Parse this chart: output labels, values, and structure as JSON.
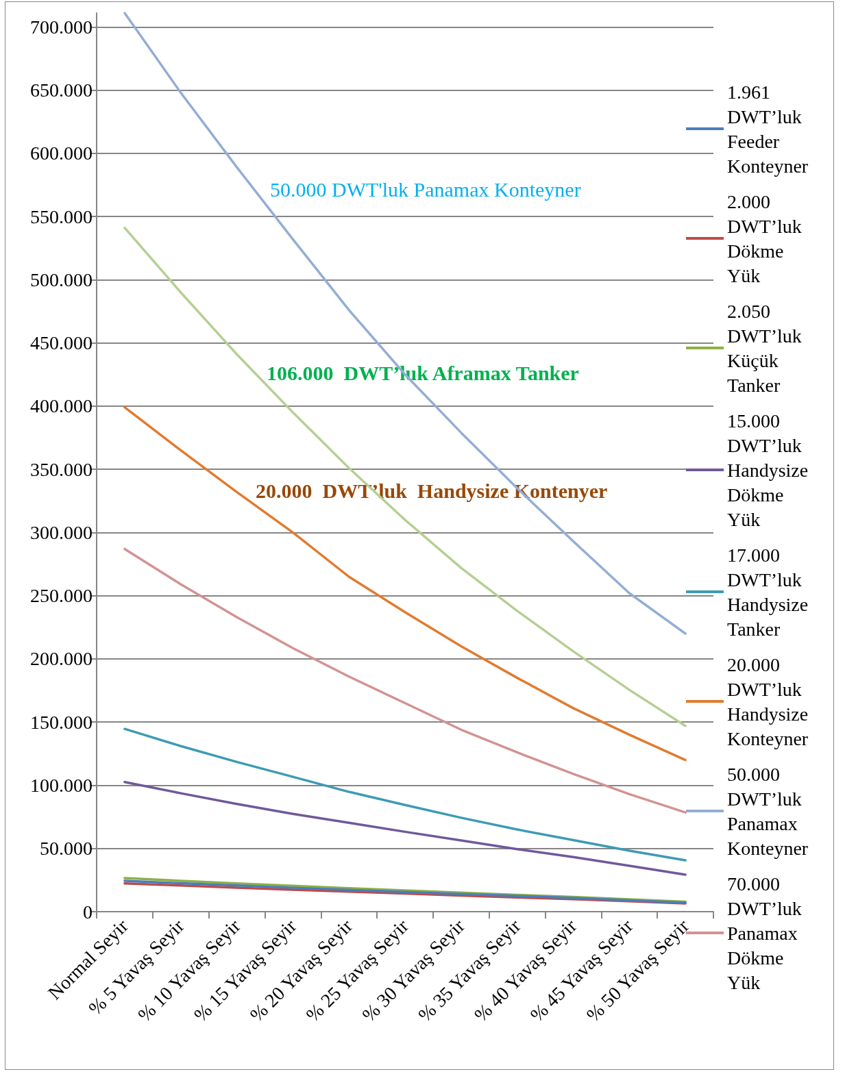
{
  "chart_data": {
    "type": "line",
    "categories": [
      "Normal Seyir",
      "% 5 Yavaş Seyir",
      "% 10 Yavaş Seyir",
      "% 15 Yavaş Seyir",
      "% 20 Yavaş Seyir",
      "% 25 Yavaş Seyir",
      "% 30 Yavaş Seyir",
      "% 35 Yavaş Seyir",
      "% 40 Yavaş Seyir",
      "% 45 Yavaş Seyir",
      "% 50 Yavaş Seyir"
    ],
    "series": [
      {
        "name": "1.961 DWT’luk Feeder Konteyner",
        "color": "#4a7ebb",
        "values": [
          24400,
          22500,
          20700,
          18900,
          17200,
          15600,
          14000,
          12400,
          10900,
          9000,
          7000
        ]
      },
      {
        "name": "2.000 DWT’luk Dökme Yük",
        "color": "#be4b48",
        "values": [
          22400,
          20700,
          19000,
          17400,
          15800,
          14300,
          12800,
          11300,
          9900,
          8200,
          6500
        ]
      },
      {
        "name": "2.050 DWT’luk Küçük Tanker",
        "color": "#8cb045",
        "values": [
          26500,
          24400,
          22400,
          20400,
          18600,
          16800,
          15000,
          13300,
          11700,
          9700,
          7800
        ]
      },
      {
        "name": "15.000 DWT’luk Handysize Dökme Yük",
        "color": "#71589a",
        "values": [
          102600,
          93700,
          85200,
          77400,
          70300,
          63200,
          56400,
          49500,
          43200,
          36300,
          29300
        ]
      },
      {
        "name": "17.000 DWT’luk Handysize Tanker",
        "color": "#3d9bb3",
        "values": [
          144600,
          131000,
          118500,
          106700,
          94800,
          84400,
          74300,
          65000,
          56600,
          48200,
          40600
        ]
      },
      {
        "name": "20.000 DWT’luk Handysize Konteyner",
        "color": "#e07b30",
        "values": [
          399000,
          365000,
          332000,
          300000,
          265000,
          237000,
          210000,
          185000,
          161000,
          140000,
          120000
        ]
      },
      {
        "name": "50.000 DWT’luk Panamax Konteyner",
        "color": "#94aed3",
        "values": [
          711000,
          648000,
          589000,
          532000,
          476000,
          425000,
          379000,
          335000,
          293000,
          252000,
          220000
        ]
      },
      {
        "name": "70.000 DWT’luk Panamax Dökme Yük",
        "color": "#d19392",
        "values": [
          287000,
          259000,
          233000,
          208500,
          186000,
          165000,
          144000,
          126000,
          109000,
          93000,
          78500
        ]
      },
      {
        "color": "#b5cf93",
        "values": [
          541000,
          490000,
          441000,
          395000,
          351000,
          310000,
          272000,
          238000,
          206000,
          175500,
          147000
        ]
      }
    ],
    "ylim": [
      0,
      711000
    ],
    "yticks": [
      0,
      {
        "value": 50000,
        "label": "50.000"
      },
      {
        "value": 100000,
        "label": "100.000"
      },
      {
        "value": 150000,
        "label": "150.000"
      },
      {
        "value": 200000,
        "label": "200.000"
      },
      {
        "value": 250000,
        "label": "250.000"
      },
      {
        "value": 300000,
        "label": "300.000"
      },
      {
        "value": 350000,
        "label": "350.000"
      },
      {
        "value": 400000,
        "label": "400.000"
      },
      {
        "value": 450000,
        "label": "450.000"
      },
      {
        "value": 500000,
        "label": "500.000"
      },
      {
        "value": 550000,
        "label": "550.000"
      },
      {
        "value": 600000,
        "label": "600.000"
      },
      {
        "value": 650000,
        "label": "650.000"
      },
      {
        "value": 700000,
        "label": "700.000"
      }
    ],
    "annotations": [
      "50.000 DWT'luk Panamax Konteyner",
      "106.000  DWT’luk Aframax Tanker",
      "20.000  DWT’luk  Handysize Kontenyer"
    ],
    "grid": "y",
    "legend": "right",
    "marker": "none",
    "line_style": "solid"
  }
}
